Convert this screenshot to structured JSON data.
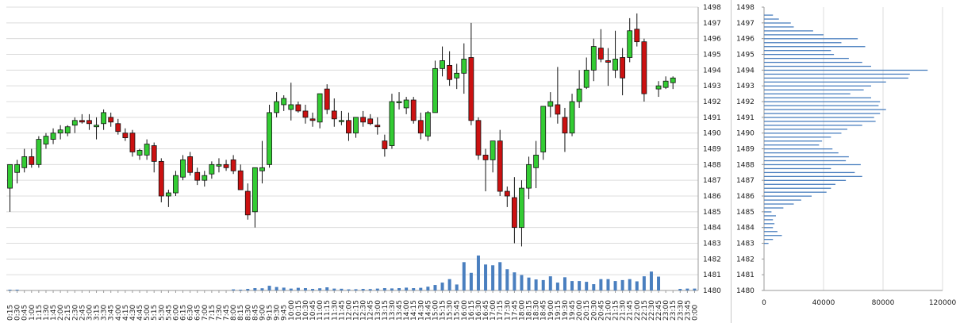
{
  "chart_data": [
    {
      "type": "candlestick",
      "y_axis_ticks": [
        "1480",
        "1481",
        "1482",
        "1483",
        "1484",
        "1485",
        "1486",
        "1487",
        "1488",
        "1489",
        "1490",
        "1491",
        "1492",
        "1493",
        "1494",
        "1495",
        "1496",
        "1497",
        "1498"
      ],
      "ylim": [
        1480,
        1498
      ],
      "grid": true,
      "up_color": "#33cc33",
      "down_color": "#cc1111",
      "x_labels": [
        "0:15",
        "0:30",
        "0:45",
        "1:00",
        "1:15",
        "1:30",
        "1:45",
        "2:00",
        "2:15",
        "2:30",
        "2:45",
        "3:00",
        "3:15",
        "3:30",
        "3:45",
        "4:00",
        "4:15",
        "4:30",
        "4:45",
        "5:00",
        "5:15",
        "5:30",
        "5:45",
        "6:00",
        "6:15",
        "6:30",
        "6:45",
        "7:00",
        "7:15",
        "7:30",
        "7:45",
        "8:00",
        "8:15",
        "8:30",
        "8:45",
        "9:00",
        "9:15",
        "9:30",
        "9:45",
        "10:00",
        "10:15",
        "10:30",
        "10:45",
        "11:00",
        "11:15",
        "11:30",
        "11:45",
        "12:00",
        "12:15",
        "12:30",
        "12:45",
        "13:00",
        "13:15",
        "13:30",
        "13:45",
        "14:00",
        "14:15",
        "14:30",
        "14:45",
        "15:00",
        "15:15",
        "15:30",
        "15:45",
        "16:00",
        "16:15",
        "16:30",
        "16:45",
        "17:00",
        "17:15",
        "17:30",
        "17:45",
        "18:00",
        "18:15",
        "18:30",
        "18:45",
        "19:00",
        "19:15",
        "19:30",
        "19:45",
        "20:00",
        "20:15",
        "20:30",
        "20:45",
        "21:00",
        "21:15",
        "21:30",
        "21:45",
        "22:00",
        "22:15",
        "22:30",
        "22:45",
        "23:00",
        "23:15",
        "23:30",
        "23:45",
        "0:00"
      ],
      "candles": [
        {
          "o": 1486.5,
          "h": 1488,
          "l": 1485,
          "c": 1488
        },
        {
          "o": 1487.5,
          "h": 1488.3,
          "l": 1486.8,
          "c": 1488
        },
        {
          "o": 1487.8,
          "h": 1489,
          "l": 1487.5,
          "c": 1488.5
        },
        {
          "o": 1488.5,
          "h": 1489,
          "l": 1487.8,
          "c": 1488
        },
        {
          "o": 1488,
          "h": 1489.8,
          "l": 1487.8,
          "c": 1489.6
        },
        {
          "o": 1489.3,
          "h": 1490,
          "l": 1489,
          "c": 1489.8
        },
        {
          "o": 1489.6,
          "h": 1490.3,
          "l": 1489.3,
          "c": 1490
        },
        {
          "o": 1490,
          "h": 1490.5,
          "l": 1489.6,
          "c": 1490.2
        },
        {
          "o": 1490,
          "h": 1490.5,
          "l": 1489.8,
          "c": 1490.4
        },
        {
          "o": 1490.5,
          "h": 1491,
          "l": 1490,
          "c": 1490.8
        },
        {
          "o": 1490.8,
          "h": 1491.2,
          "l": 1490.6,
          "c": 1490.7
        },
        {
          "o": 1490.8,
          "h": 1491.2,
          "l": 1490.2,
          "c": 1490.6
        },
        {
          "o": 1490.4,
          "h": 1491,
          "l": 1489.6,
          "c": 1490.5
        },
        {
          "o": 1490.6,
          "h": 1491.5,
          "l": 1490.2,
          "c": 1491.3
        },
        {
          "o": 1491,
          "h": 1491.3,
          "l": 1490.4,
          "c": 1490.7
        },
        {
          "o": 1490.6,
          "h": 1490.9,
          "l": 1489.9,
          "c": 1490.1
        },
        {
          "o": 1490,
          "h": 1490.3,
          "l": 1489.5,
          "c": 1489.7
        },
        {
          "o": 1490,
          "h": 1490.2,
          "l": 1488.5,
          "c": 1488.8
        },
        {
          "o": 1488.6,
          "h": 1489,
          "l": 1488.3,
          "c": 1488.9
        },
        {
          "o": 1488.6,
          "h": 1489.6,
          "l": 1488.3,
          "c": 1489.3
        },
        {
          "o": 1489.2,
          "h": 1489.4,
          "l": 1487.5,
          "c": 1488.2
        },
        {
          "o": 1488.2,
          "h": 1488.4,
          "l": 1485.6,
          "c": 1486
        },
        {
          "o": 1486,
          "h": 1486.4,
          "l": 1485.3,
          "c": 1486.2
        },
        {
          "o": 1486.2,
          "h": 1487.6,
          "l": 1486,
          "c": 1487.3
        },
        {
          "o": 1487.2,
          "h": 1488.6,
          "l": 1487,
          "c": 1488.3
        },
        {
          "o": 1488.5,
          "h": 1488.8,
          "l": 1487.3,
          "c": 1487.5
        },
        {
          "o": 1487.5,
          "h": 1487.8,
          "l": 1486.7,
          "c": 1487
        },
        {
          "o": 1487,
          "h": 1487.6,
          "l": 1486.6,
          "c": 1487.3
        },
        {
          "o": 1487.4,
          "h": 1488.2,
          "l": 1487.1,
          "c": 1488
        },
        {
          "o": 1487.9,
          "h": 1488.4,
          "l": 1487.5,
          "c": 1488
        },
        {
          "o": 1488,
          "h": 1488.3,
          "l": 1487.6,
          "c": 1487.8
        },
        {
          "o": 1488.3,
          "h": 1488.6,
          "l": 1487.4,
          "c": 1487.6
        },
        {
          "o": 1487.6,
          "h": 1488,
          "l": 1486.4,
          "c": 1486.4
        },
        {
          "o": 1486.3,
          "h": 1486.8,
          "l": 1484.5,
          "c": 1484.8
        },
        {
          "o": 1485,
          "h": 1487.8,
          "l": 1484,
          "c": 1487.8
        },
        {
          "o": 1487.6,
          "h": 1489.5,
          "l": 1486.8,
          "c": 1487.8
        },
        {
          "o": 1488,
          "h": 1491.8,
          "l": 1487.8,
          "c": 1491.3
        },
        {
          "o": 1491.3,
          "h": 1492.6,
          "l": 1491,
          "c": 1492
        },
        {
          "o": 1491.8,
          "h": 1492.4,
          "l": 1491.4,
          "c": 1492.2
        },
        {
          "o": 1491.5,
          "h": 1493.2,
          "l": 1490.8,
          "c": 1491.8
        },
        {
          "o": 1491.8,
          "h": 1492,
          "l": 1491.3,
          "c": 1491.4
        },
        {
          "o": 1491.4,
          "h": 1491.8,
          "l": 1490.6,
          "c": 1491
        },
        {
          "o": 1490.9,
          "h": 1491.3,
          "l": 1490.4,
          "c": 1490.8
        },
        {
          "o": 1490.7,
          "h": 1492.5,
          "l": 1490.3,
          "c": 1492.5
        },
        {
          "o": 1492.8,
          "h": 1493.1,
          "l": 1491.2,
          "c": 1491.5
        },
        {
          "o": 1491.4,
          "h": 1492.2,
          "l": 1490.4,
          "c": 1490.9
        },
        {
          "o": 1490.8,
          "h": 1491.4,
          "l": 1490.5,
          "c": 1490.8
        },
        {
          "o": 1490.8,
          "h": 1491.3,
          "l": 1489.5,
          "c": 1490
        },
        {
          "o": 1490,
          "h": 1491,
          "l": 1489.7,
          "c": 1491
        },
        {
          "o": 1491,
          "h": 1491.4,
          "l": 1490.4,
          "c": 1490.7
        },
        {
          "o": 1490.9,
          "h": 1491.2,
          "l": 1490.5,
          "c": 1490.6
        },
        {
          "o": 1490.5,
          "h": 1491,
          "l": 1489.9,
          "c": 1490.4
        },
        {
          "o": 1489.5,
          "h": 1489.9,
          "l": 1488.5,
          "c": 1489
        },
        {
          "o": 1489.2,
          "h": 1492.5,
          "l": 1489,
          "c": 1492
        },
        {
          "o": 1492,
          "h": 1492.6,
          "l": 1491.5,
          "c": 1492
        },
        {
          "o": 1491.6,
          "h": 1492.3,
          "l": 1491.2,
          "c": 1492.1
        },
        {
          "o": 1492.1,
          "h": 1492.3,
          "l": 1490.6,
          "c": 1490.8
        },
        {
          "o": 1490.8,
          "h": 1491.3,
          "l": 1489.6,
          "c": 1490
        },
        {
          "o": 1489.8,
          "h": 1491.4,
          "l": 1489.5,
          "c": 1491.3
        },
        {
          "o": 1491.3,
          "h": 1494.6,
          "l": 1491.3,
          "c": 1494.1
        },
        {
          "o": 1494.1,
          "h": 1495.5,
          "l": 1493.6,
          "c": 1494.6
        },
        {
          "o": 1494.3,
          "h": 1495.2,
          "l": 1493,
          "c": 1493.4
        },
        {
          "o": 1493.5,
          "h": 1494.4,
          "l": 1492.8,
          "c": 1493.8
        },
        {
          "o": 1493.8,
          "h": 1495.7,
          "l": 1492.5,
          "c": 1494.7
        },
        {
          "o": 1494.8,
          "h": 1497,
          "l": 1490.5,
          "c": 1490.8
        },
        {
          "o": 1490.8,
          "h": 1491,
          "l": 1488.3,
          "c": 1488.6
        },
        {
          "o": 1488.6,
          "h": 1489,
          "l": 1486.3,
          "c": 1488.3
        },
        {
          "o": 1488.3,
          "h": 1489.5,
          "l": 1487.5,
          "c": 1489.5
        },
        {
          "o": 1489.5,
          "h": 1490.2,
          "l": 1486,
          "c": 1486.3
        },
        {
          "o": 1486.3,
          "h": 1486.6,
          "l": 1485.3,
          "c": 1486
        },
        {
          "o": 1485.9,
          "h": 1487.2,
          "l": 1483,
          "c": 1484
        },
        {
          "o": 1484,
          "h": 1487,
          "l": 1482.8,
          "c": 1486.5
        },
        {
          "o": 1486.5,
          "h": 1488.5,
          "l": 1485.8,
          "c": 1488
        },
        {
          "o": 1487.8,
          "h": 1489.5,
          "l": 1486.5,
          "c": 1488.6
        },
        {
          "o": 1488.8,
          "h": 1491.7,
          "l": 1488.3,
          "c": 1491.7
        },
        {
          "o": 1491.7,
          "h": 1492.6,
          "l": 1491,
          "c": 1492
        },
        {
          "o": 1491.8,
          "h": 1494.2,
          "l": 1490.6,
          "c": 1491.2
        },
        {
          "o": 1491,
          "h": 1491.6,
          "l": 1488.8,
          "c": 1490
        },
        {
          "o": 1490,
          "h": 1492.5,
          "l": 1489.8,
          "c": 1492
        },
        {
          "o": 1492,
          "h": 1494,
          "l": 1491.6,
          "c": 1492.8
        },
        {
          "o": 1492.9,
          "h": 1494.8,
          "l": 1492.8,
          "c": 1494
        },
        {
          "o": 1494,
          "h": 1496,
          "l": 1493.3,
          "c": 1495.5
        },
        {
          "o": 1495.4,
          "h": 1496.6,
          "l": 1494.5,
          "c": 1494.7
        },
        {
          "o": 1494.6,
          "h": 1495.4,
          "l": 1493,
          "c": 1494.5
        },
        {
          "o": 1494,
          "h": 1496.5,
          "l": 1493.5,
          "c": 1494.7
        },
        {
          "o": 1494.8,
          "h": 1495.4,
          "l": 1492.4,
          "c": 1493.5
        },
        {
          "o": 1494.8,
          "h": 1497.3,
          "l": 1494.5,
          "c": 1496.5
        },
        {
          "o": 1496.6,
          "h": 1497.6,
          "l": 1495.5,
          "c": 1495.8
        },
        {
          "o": 1495.8,
          "h": 1496,
          "l": 1492,
          "c": 1492.5
        },
        null,
        {
          "o": 1492.8,
          "h": 1493.3,
          "l": 1492.3,
          "c": 1493
        },
        {
          "o": 1492.9,
          "h": 1493.6,
          "l": 1492.8,
          "c": 1493.3
        },
        {
          "o": 1493.2,
          "h": 1493.6,
          "l": 1492.8,
          "c": 1493.5
        },
        null,
        null,
        null
      ],
      "volume": [
        0.05,
        0.05,
        0,
        0,
        0,
        0,
        0,
        0,
        0,
        0,
        0,
        0,
        0,
        0,
        0,
        0,
        0,
        0,
        0,
        0,
        0,
        0,
        0,
        0,
        0,
        0,
        0,
        0,
        0,
        0,
        0,
        0.07,
        0.05,
        0.1,
        0.15,
        0.14,
        0.3,
        0.22,
        0.18,
        0.12,
        0.17,
        0.15,
        0.1,
        0.14,
        0.2,
        0.12,
        0.11,
        0.07,
        0.08,
        0.1,
        0.09,
        0.12,
        0.15,
        0.13,
        0.15,
        0.18,
        0.15,
        0.17,
        0.24,
        0.35,
        0.5,
        0.72,
        0.38,
        1.8,
        1.12,
        2.22,
        1.65,
        1.6,
        1.8,
        1.35,
        1.15,
        0.98,
        0.82,
        0.7,
        0.66,
        0.9,
        0.5,
        0.84,
        0.6,
        0.6,
        0.55,
        0.4,
        0.72,
        0.72,
        0.6,
        0.66,
        0.72,
        0.58,
        0.9,
        1.2,
        0.88,
        0,
        0,
        0.1,
        0.12,
        0.12,
        0,
        0
      ]
    },
    {
      "type": "bar",
      "orientation": "horizontal",
      "x_axis_ticks": [
        "0",
        "40000",
        "80000",
        "120000"
      ],
      "xlim": [
        0,
        120000
      ],
      "y_axis_ticks": [
        "1480",
        "1481",
        "1482",
        "1483",
        "1484",
        "1485",
        "1486",
        "1487",
        "1488",
        "1489",
        "1490",
        "1491",
        "1492",
        "1493",
        "1494",
        "1495",
        "1496",
        "1497",
        "1498"
      ],
      "ylim": [
        1480,
        1498
      ],
      "grid": true,
      "bar_color": "#4a7fbf",
      "profile": [
        {
          "price": 1483.0,
          "v": 3000
        },
        {
          "price": 1483.25,
          "v": 6000
        },
        {
          "price": 1483.5,
          "v": 12000
        },
        {
          "price": 1483.75,
          "v": 9000
        },
        {
          "price": 1484.0,
          "v": 6000
        },
        {
          "price": 1484.25,
          "v": 7000
        },
        {
          "price": 1484.5,
          "v": 6000
        },
        {
          "price": 1484.75,
          "v": 8000
        },
        {
          "price": 1485.0,
          "v": 5000
        },
        {
          "price": 1485.25,
          "v": 13000
        },
        {
          "price": 1485.5,
          "v": 20000
        },
        {
          "price": 1485.75,
          "v": 25000
        },
        {
          "price": 1486.0,
          "v": 32000
        },
        {
          "price": 1486.25,
          "v": 42000
        },
        {
          "price": 1486.5,
          "v": 45000
        },
        {
          "price": 1486.75,
          "v": 48000
        },
        {
          "price": 1487.0,
          "v": 55000
        },
        {
          "price": 1487.25,
          "v": 66000
        },
        {
          "price": 1487.5,
          "v": 61000
        },
        {
          "price": 1487.75,
          "v": 45000
        },
        {
          "price": 1488.0,
          "v": 65000
        },
        {
          "price": 1488.25,
          "v": 55000
        },
        {
          "price": 1488.5,
          "v": 57000
        },
        {
          "price": 1488.75,
          "v": 50000
        },
        {
          "price": 1489.0,
          "v": 46000
        },
        {
          "price": 1489.25,
          "v": 37000
        },
        {
          "price": 1489.5,
          "v": 39000
        },
        {
          "price": 1489.75,
          "v": 45000
        },
        {
          "price": 1490.0,
          "v": 52000
        },
        {
          "price": 1490.25,
          "v": 56000
        },
        {
          "price": 1490.5,
          "v": 66000
        },
        {
          "price": 1490.75,
          "v": 75000
        },
        {
          "price": 1491.0,
          "v": 74000
        },
        {
          "price": 1491.25,
          "v": 78000
        },
        {
          "price": 1491.5,
          "v": 82000
        },
        {
          "price": 1491.75,
          "v": 77000
        },
        {
          "price": 1492.0,
          "v": 78000
        },
        {
          "price": 1492.25,
          "v": 72000
        },
        {
          "price": 1492.5,
          "v": 58000
        },
        {
          "price": 1492.75,
          "v": 67000
        },
        {
          "price": 1493.0,
          "v": 72000
        },
        {
          "price": 1493.25,
          "v": 82000
        },
        {
          "price": 1493.5,
          "v": 97000
        },
        {
          "price": 1493.75,
          "v": 98000
        },
        {
          "price": 1494.0,
          "v": 110000
        },
        {
          "price": 1494.25,
          "v": 72000
        },
        {
          "price": 1494.5,
          "v": 66000
        },
        {
          "price": 1494.75,
          "v": 57000
        },
        {
          "price": 1495.0,
          "v": 47000
        },
        {
          "price": 1495.25,
          "v": 45000
        },
        {
          "price": 1495.5,
          "v": 68000
        },
        {
          "price": 1495.75,
          "v": 52000
        },
        {
          "price": 1496.0,
          "v": 63000
        },
        {
          "price": 1496.25,
          "v": 40000
        },
        {
          "price": 1496.5,
          "v": 33000
        },
        {
          "price": 1496.75,
          "v": 20000
        },
        {
          "price": 1497.0,
          "v": 18000
        },
        {
          "price": 1497.25,
          "v": 10000
        },
        {
          "price": 1497.5,
          "v": 6000
        }
      ]
    }
  ]
}
